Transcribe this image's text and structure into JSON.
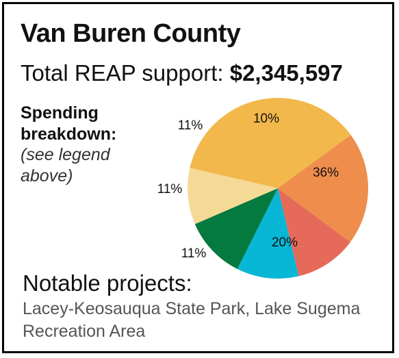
{
  "header": {
    "title": "Van Buren County",
    "total_label": "Total REAP support: ",
    "total_amount": "$2,345,597"
  },
  "breakdown": {
    "heading_line1": "Spending",
    "heading_line2": "breakdown:",
    "note_line1": "(see legend",
    "note_line2": "above)"
  },
  "notable": {
    "heading": "Notable projects:",
    "text": "Lacey-Keosauqua State Park, Lake Sugema Recreation Area"
  },
  "chart_data": {
    "type": "pie",
    "title": "",
    "slices": [
      {
        "value": 36,
        "label": "36%",
        "color": "#F2B84B"
      },
      {
        "value": 20,
        "label": "20%",
        "color": "#EE8D4C"
      },
      {
        "value": 11,
        "label": "11%",
        "color": "#E66A5A"
      },
      {
        "value": 11,
        "label": "11%",
        "color": "#08B6D6"
      },
      {
        "value": 11,
        "label": "11%",
        "color": "#057A3F"
      },
      {
        "value": 10,
        "label": "10%",
        "color": "#F5DA97"
      }
    ]
  }
}
